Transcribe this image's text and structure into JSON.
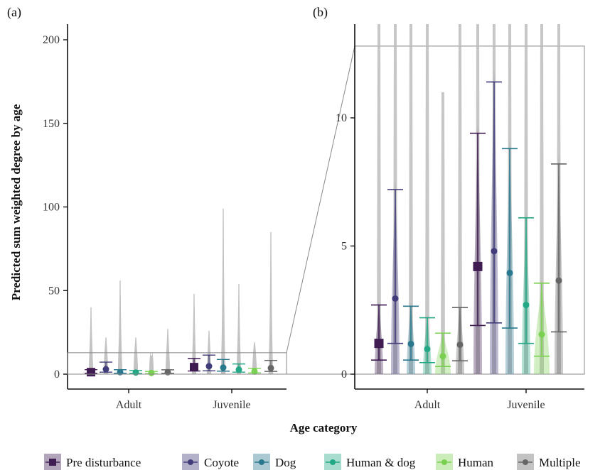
{
  "chart_data": [
    {
      "panel": "(a)",
      "type": "scatter",
      "categories": [
        "Adult",
        "Juvenile"
      ],
      "xlabel": "Age category",
      "ylabel": "Predicted sum weighted degree by age",
      "ylim": [
        0,
        210
      ],
      "yticks": [
        0,
        50,
        100,
        150,
        200
      ],
      "grid": false,
      "series": [
        {
          "name": "Pre disturbance",
          "color": "#3f1c52",
          "marker": "square",
          "values": [
            1.2,
            4.2
          ],
          "lower": [
            0.55,
            1.9
          ],
          "upper": [
            2.7,
            9.4
          ],
          "violin_max": [
            40,
            48
          ]
        },
        {
          "name": "Coyote",
          "color": "#413d7b",
          "marker": "circle",
          "values": [
            2.95,
            4.8
          ],
          "lower": [
            1.2,
            2.0
          ],
          "upper": [
            7.2,
            11.4
          ],
          "violin_max": [
            22,
            26
          ]
        },
        {
          "name": "Dog",
          "color": "#2a788e",
          "marker": "circle",
          "values": [
            1.18,
            3.95
          ],
          "lower": [
            0.55,
            1.8
          ],
          "upper": [
            2.65,
            8.8
          ],
          "violin_max": [
            56,
            99
          ]
        },
        {
          "name": "Human & dog",
          "color": "#22a884",
          "marker": "circle",
          "values": [
            0.98,
            2.7
          ],
          "lower": [
            0.45,
            1.2
          ],
          "upper": [
            2.2,
            6.1
          ],
          "violin_max": [
            22,
            54
          ]
        },
        {
          "name": "Human",
          "color": "#7ad151",
          "marker": "circle",
          "values": [
            0.7,
            1.55
          ],
          "lower": [
            0.3,
            0.7
          ],
          "upper": [
            1.6,
            3.55
          ],
          "violin_max": [
            11,
            19
          ]
        },
        {
          "name": "Multiple",
          "color": "#666666",
          "marker": "circle",
          "values": [
            1.15,
            3.65
          ],
          "lower": [
            0.52,
            1.65
          ],
          "upper": [
            2.6,
            8.2
          ],
          "violin_max": [
            27,
            85
          ]
        }
      ]
    },
    {
      "panel": "(b)",
      "type": "scatter",
      "categories": [
        "Adult",
        "Juvenile"
      ],
      "ylim": [
        -0.2,
        13.5
      ],
      "yticks": [
        0,
        5,
        10
      ],
      "zoom_window": [
        0,
        12.8
      ],
      "grid": false
    }
  ],
  "legend": {
    "position": "bottom",
    "items": [
      "Pre disturbance",
      "Coyote",
      "Dog",
      "Human & dog",
      "Human",
      "Multiple"
    ]
  },
  "colors": {
    "pre": "#3f1c52",
    "coyote": "#413d7b",
    "dog": "#2a788e",
    "humandog": "#22a884",
    "human": "#7ad151",
    "multiple": "#666666",
    "violin_grey": "#bdbdbd"
  }
}
